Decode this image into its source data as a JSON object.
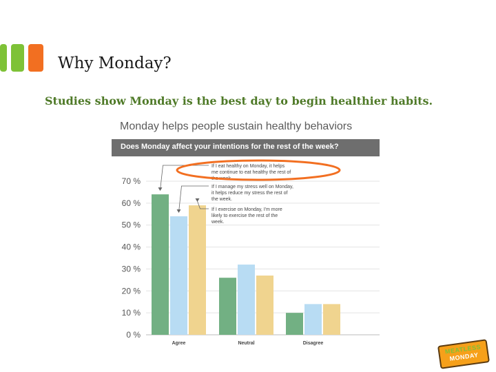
{
  "slide": {
    "title": "Why Monday?",
    "subtitle": "Studies show Monday is the best day to begin healthier habits."
  },
  "colors": {
    "accent_green": "#7ec237",
    "accent_orange": "#f26f21",
    "subtitle": "#4f7a28"
  },
  "logo": {
    "line1": "MEATLESS",
    "line2": "MONDAY"
  },
  "chart_data": {
    "type": "bar",
    "title": "Monday helps people sustain healthy behaviors",
    "subtitle": "Does Monday affect your intentions for the rest of the week?",
    "categories": [
      "Agree",
      "Neutral",
      "Disagree"
    ],
    "series": [
      {
        "name": "If I eat healthy on Monday, it helps me continue to eat healthy the rest of the week.",
        "values": [
          64,
          26,
          10
        ],
        "color": "#72b083"
      },
      {
        "name": "If I manage my stress well on Monday, it helps reduce my stress the rest of the week.",
        "values": [
          54,
          32,
          14
        ],
        "color": "#b8dcf3"
      },
      {
        "name": "If I exercise on Monday, I'm more likely to exercise the rest of the week.",
        "values": [
          59,
          27,
          14
        ],
        "color": "#f0d48f"
      }
    ],
    "yticks": [
      "0 %",
      "10 %",
      "20 %",
      "30 %",
      "40 %",
      "50 %",
      "60 %",
      "70 %"
    ],
    "ylim": [
      0,
      70
    ],
    "grid": true,
    "annotation_highlight": "first series label circled"
  }
}
